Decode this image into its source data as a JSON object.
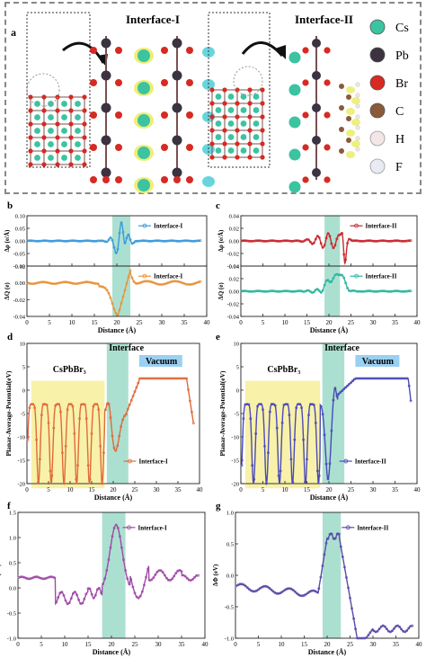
{
  "figure": {
    "panel_labels": [
      "a",
      "b",
      "c",
      "d",
      "e",
      "f",
      "g"
    ],
    "top": {
      "interface1_title": "Interface-I",
      "interface2_title": "Interface-II",
      "legend": [
        {
          "label": "Cs",
          "color": "#3cc3a0"
        },
        {
          "label": "Pb",
          "color": "#3b3340"
        },
        {
          "label": "Br",
          "color": "#d62a22"
        },
        {
          "label": "C",
          "color": "#8a5a3a"
        },
        {
          "label": "H",
          "color": "#f2e6e6"
        },
        {
          "label": "F",
          "color": "#e8eaf4"
        }
      ]
    }
  },
  "chart_data": [
    {
      "id": "b-top",
      "type": "line",
      "panel": "b",
      "ylabel": "Δρ (e/Å)",
      "ylim": [
        -0.1,
        0.1
      ],
      "yticks": [
        "0.10",
        "0.05",
        "0.00",
        "-0.05",
        "-0.10"
      ],
      "xlim": [
        0,
        40
      ],
      "xticks": [
        "0",
        "5",
        "10",
        "15",
        "20",
        "25",
        "30",
        "35",
        "40"
      ],
      "series": [
        {
          "name": "Interface-I",
          "color": "#3a9ad9"
        }
      ],
      "highlight": [
        19,
        23
      ]
    },
    {
      "id": "b-bottom",
      "type": "line",
      "panel": "b",
      "ylabel": "ΔQ (e)",
      "xlabel": "Distance (Å)",
      "ylim": [
        -0.04,
        0.02
      ],
      "yticks": [
        "0.02",
        "0.00",
        "-0.02",
        "-0.04"
      ],
      "xlim": [
        0,
        40
      ],
      "xticks": [
        "0",
        "5",
        "10",
        "15",
        "20",
        "25",
        "30",
        "35",
        "40"
      ],
      "series": [
        {
          "name": "Interface-I",
          "color": "#e8923a"
        }
      ],
      "highlight": [
        19,
        23
      ]
    },
    {
      "id": "c-top",
      "type": "line",
      "panel": "c",
      "ylabel": "Δρ (e/Å)",
      "ylim": [
        -0.04,
        0.04
      ],
      "yticks": [
        "0.04",
        "0.02",
        "0.00",
        "-0.02",
        "-0.04"
      ],
      "xlim": [
        0,
        40
      ],
      "xticks": [
        "0",
        "5",
        "10",
        "15",
        "20",
        "25",
        "30",
        "35",
        "40"
      ],
      "series": [
        {
          "name": "Interface-II",
          "color": "#c8282d"
        }
      ],
      "highlight": [
        19,
        22.5
      ]
    },
    {
      "id": "c-bottom",
      "type": "line",
      "panel": "c",
      "ylabel": "ΔQ (e)",
      "xlabel": "Distance (Å)",
      "ylim": [
        -0.04,
        0.04
      ],
      "yticks": [
        "0.04",
        "0.02",
        "0.00",
        "-0.02",
        "-0.04"
      ],
      "xlim": [
        0,
        40
      ],
      "xticks": [
        "0",
        "5",
        "10",
        "15",
        "20",
        "25",
        "30",
        "35",
        "40"
      ],
      "series": [
        {
          "name": "Interface-II",
          "color": "#2db5a0"
        }
      ],
      "highlight": [
        19,
        22.5
      ]
    },
    {
      "id": "d",
      "type": "line",
      "panel": "d",
      "ylabel": "Planar-Average-Potential(eV)",
      "xlabel": "Distance (Å)",
      "ylim": [
        -20,
        10
      ],
      "yticks": [
        "10",
        "5",
        "0",
        "-5",
        "-10",
        "-15",
        "-20"
      ],
      "xlim": [
        0,
        40
      ],
      "xticks": [
        "0",
        "5",
        "10",
        "15",
        "20",
        "25",
        "30",
        "35",
        "40"
      ],
      "series": [
        {
          "name": "Interface-I",
          "color": "#e06a3a"
        }
      ],
      "annotations": {
        "bulk": "CsPbBr₃",
        "interface": "Interface",
        "vacuum": "Vacuum"
      }
    },
    {
      "id": "e",
      "type": "line",
      "panel": "e",
      "ylabel": "Planar-Average-Potential(eV)",
      "xlabel": "Distance (Å)",
      "ylim": [
        -20,
        10
      ],
      "yticks": [
        "10",
        "5",
        "0",
        "-5",
        "-10",
        "-15",
        "-20"
      ],
      "xlim": [
        0,
        40
      ],
      "xticks": [
        "0",
        "5",
        "10",
        "15",
        "20",
        "25",
        "30",
        "35",
        "40"
      ],
      "series": [
        {
          "name": "Interface-II",
          "color": "#4a4ab8"
        }
      ],
      "annotations": {
        "bulk": "CsPbBr₃",
        "interface": "Interface",
        "vacuum": "Vacuum"
      }
    },
    {
      "id": "f",
      "type": "line",
      "panel": "f",
      "ylabel": "ΔΦ (eV)",
      "xlabel": "Distance (Å)",
      "ylim": [
        -1.0,
        1.5
      ],
      "yticks": [
        "1.5",
        "1.0",
        "0.5",
        "0.0",
        "-0.5",
        "-1.0"
      ],
      "xlim": [
        0,
        40
      ],
      "xticks": [
        "0",
        "5",
        "10",
        "15",
        "20",
        "25",
        "30",
        "35",
        "40"
      ],
      "series": [
        {
          "name": "Interface-I",
          "color": "#a04aa8"
        }
      ],
      "highlight": [
        18,
        23
      ]
    },
    {
      "id": "g",
      "type": "line",
      "panel": "g",
      "ylabel": "ΔΦ (eV)",
      "xlabel": "Distance (Å)",
      "ylim": [
        -1.0,
        1.0
      ],
      "yticks": [
        "1.0",
        "0.5",
        "0.0",
        "-0.5",
        "-1.0"
      ],
      "xlim": [
        0,
        40
      ],
      "xticks": [
        "0",
        "5",
        "10",
        "15",
        "20",
        "25",
        "30",
        "35",
        "40"
      ],
      "series": [
        {
          "name": "Interface-II",
          "color": "#5a4aa8"
        }
      ],
      "highlight": [
        19,
        23
      ]
    }
  ]
}
